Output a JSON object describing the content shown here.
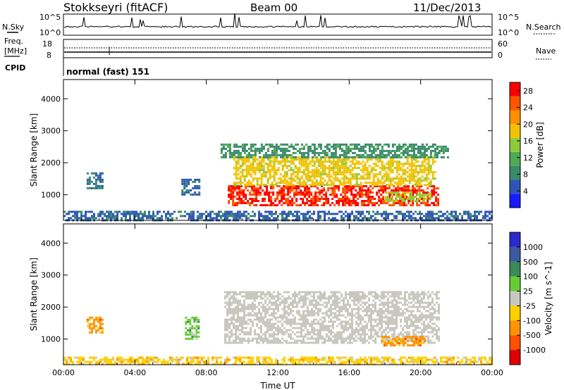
{
  "header": {
    "station": "Stokkseyri (fitACF)",
    "beam": "Beam 00",
    "date": "11/Dec/2013"
  },
  "summary_panels": {
    "nsky": {
      "label": "N.Sky",
      "max_label": "10^5",
      "min_label": "10^0"
    },
    "nsearch": {
      "label": "N.Search",
      "max_label": "10^5",
      "min_label": "10^0"
    },
    "freq": {
      "label_line1": "Freq.",
      "label_line2": "[MHz]",
      "max": "18",
      "min": "8"
    },
    "nave": {
      "label": "Nave",
      "max": "60",
      "min": "0"
    },
    "cpid": {
      "label": "CPID",
      "value": "normal (fast) 151"
    }
  },
  "colors": {
    "power_scale": [
      "#1a1aff",
      "#2f55b8",
      "#3a8a6a",
      "#4faa55",
      "#8ecb3a",
      "#f2c200",
      "#ff9000",
      "#ff5500",
      "#ff0000"
    ],
    "velocity_scale": [
      "#2a2acd",
      "#3a5aa0",
      "#3a8a5a",
      "#66cc33",
      "#c8c8c0",
      "#ffd000",
      "#ff9400",
      "#ff5000",
      "#e00000"
    ]
  },
  "chart_data": [
    {
      "type": "heatmap",
      "panel": "power",
      "ylabel": "Slant Range [km]",
      "yticks": [
        "1000",
        "2000",
        "3000",
        "4000"
      ],
      "ylim": [
        200,
        4600
      ],
      "xlim_hours": [
        0,
        24
      ],
      "xticks": [
        "00:00",
        "04:00",
        "08:00",
        "12:00",
        "16:00",
        "20:00",
        "00:00"
      ],
      "colorbar": {
        "label": "Power [dB]",
        "ticks": [
          "4",
          "8",
          "12",
          "16",
          "20",
          "24",
          "28"
        ],
        "range": [
          0,
          30
        ]
      },
      "regions": [
        {
          "t": [
            9.2,
            21.0
          ],
          "r": [
            700,
            1300
          ],
          "value": 27
        },
        {
          "t": [
            9.5,
            20.8
          ],
          "r": [
            1300,
            2200
          ],
          "value": 18
        },
        {
          "t": [
            8.8,
            21.5
          ],
          "r": [
            2200,
            2600
          ],
          "value": 9
        },
        {
          "t": [
            1.3,
            2.2
          ],
          "r": [
            1200,
            1700
          ],
          "value": 7
        },
        {
          "t": [
            6.6,
            7.6
          ],
          "r": [
            1000,
            1500
          ],
          "value": 6
        },
        {
          "t": [
            18.0,
            20.5
          ],
          "r": [
            800,
            1100
          ],
          "value": 16
        },
        {
          "t": [
            0.0,
            24.0
          ],
          "r": [
            200,
            500
          ],
          "value": 6
        }
      ]
    },
    {
      "type": "heatmap",
      "panel": "velocity",
      "ylabel": "Slant Range [km]",
      "yticks": [
        "1000",
        "2000",
        "3000",
        "4000"
      ],
      "ylim": [
        200,
        4600
      ],
      "xlim_hours": [
        0,
        24
      ],
      "xticks": [
        "00:00",
        "04:00",
        "08:00",
        "12:00",
        "16:00",
        "20:00",
        "00:00"
      ],
      "xlabel": "Time UT",
      "colorbar": {
        "label": "Velocity [m s^-1]",
        "ticks": [
          "1000",
          "500",
          "100",
          "25",
          "-25",
          "-100",
          "-500",
          "-1000"
        ]
      },
      "regions": [
        {
          "t": [
            9.0,
            21.0
          ],
          "r": [
            900,
            2500
          ],
          "value": 0
        },
        {
          "t": [
            1.3,
            2.2
          ],
          "r": [
            1200,
            1700
          ],
          "value": -200
        },
        {
          "t": [
            6.8,
            7.6
          ],
          "r": [
            1000,
            1700
          ],
          "value": 80
        },
        {
          "t": [
            17.8,
            20.2
          ],
          "r": [
            800,
            1100
          ],
          "value": -250
        },
        {
          "t": [
            0.0,
            24.0
          ],
          "r": [
            200,
            450
          ],
          "value": -60
        }
      ]
    }
  ]
}
